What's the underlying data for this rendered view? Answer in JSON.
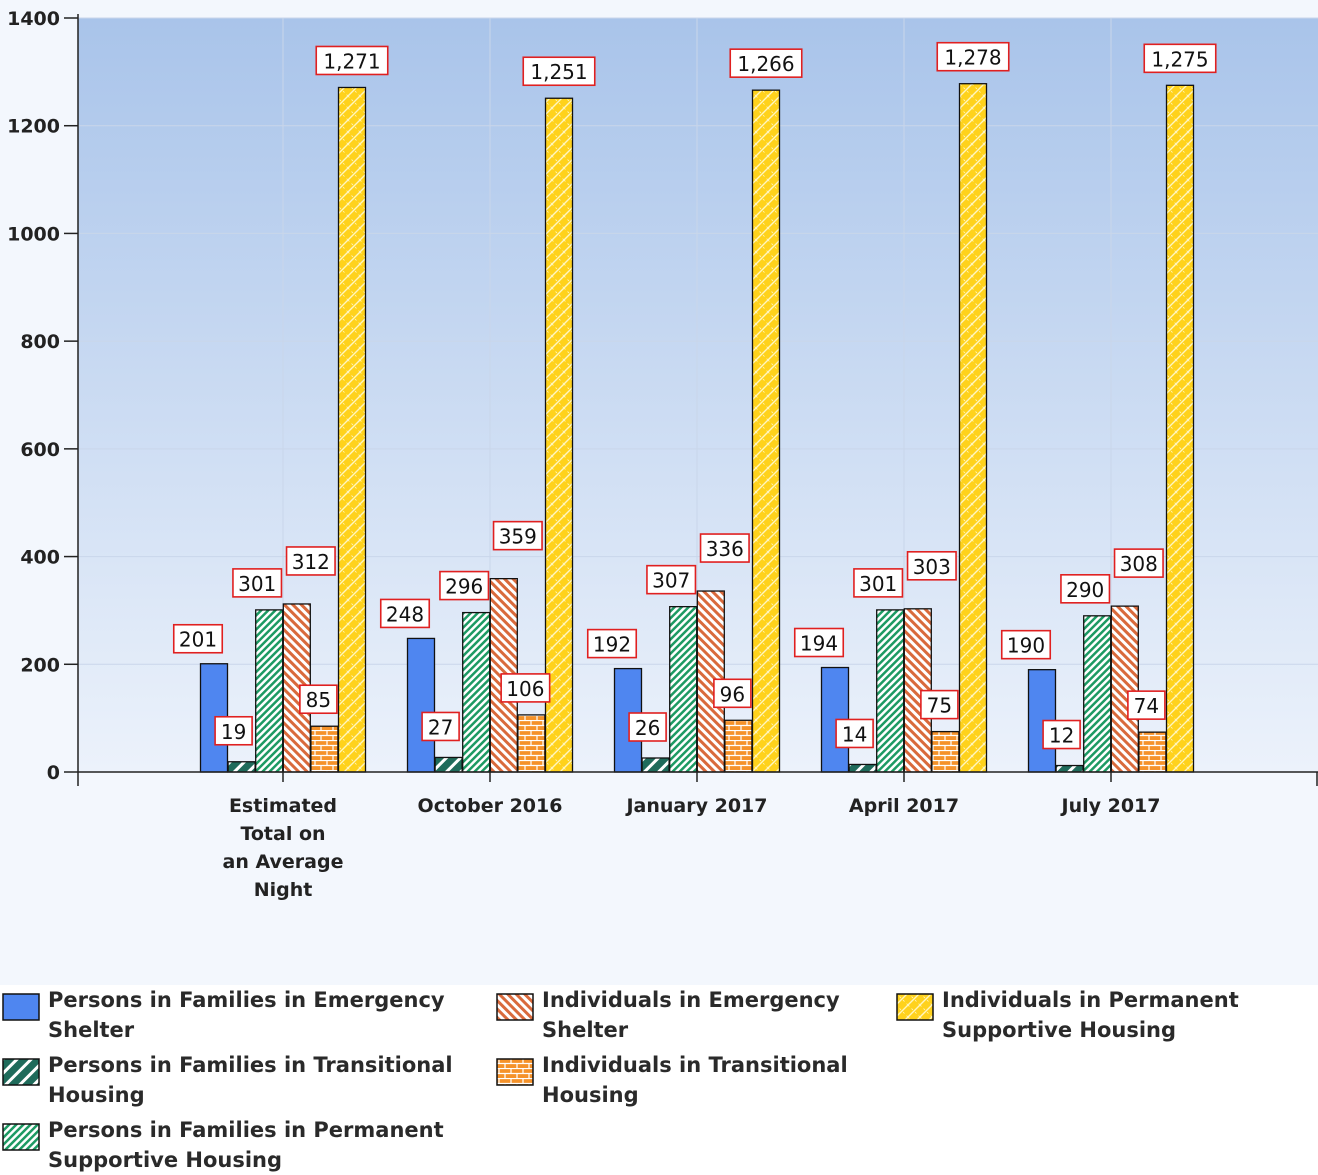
{
  "chart_data": {
    "type": "bar",
    "categories": [
      "Estimated Total on an Average Night",
      "October 2016",
      "January 2017",
      "April 2017",
      "July 2017"
    ],
    "category_label_lines": [
      [
        "Estimated",
        "Total on",
        "an Average",
        "Night"
      ],
      [
        "October 2016"
      ],
      [
        "January 2017"
      ],
      [
        "April 2017"
      ],
      [
        "July 2017"
      ]
    ],
    "series": [
      {
        "name": "Persons in Families in Emergency Shelter",
        "values": [
          201,
          248,
          192,
          194,
          190
        ],
        "labels": [
          "201",
          "248",
          "192",
          "194",
          "190"
        ],
        "color": "#4f86f0",
        "pattern": "solid"
      },
      {
        "name": "Persons in Families in Transitional Housing",
        "values": [
          19,
          27,
          26,
          14,
          12
        ],
        "labels": [
          "19",
          "27",
          "26",
          "14",
          "12"
        ],
        "color": "#1f6b5b",
        "pattern": "wide-diagonal"
      },
      {
        "name": "Persons in Families in Permanent Supportive Housing",
        "values": [
          301,
          296,
          307,
          301,
          290
        ],
        "labels": [
          "301",
          "296",
          "307",
          "301",
          "290"
        ],
        "color": "#1d9a63",
        "pattern": "dense-diagonal"
      },
      {
        "name": "Individuals in Emergency Shelter",
        "values": [
          312,
          359,
          336,
          303,
          308
        ],
        "labels": [
          "312",
          "359",
          "336",
          "303",
          "308"
        ],
        "color": "#d96a3c",
        "pattern": "diagonal"
      },
      {
        "name": "Individuals in Transitional Housing",
        "values": [
          85,
          106,
          96,
          75,
          74
        ],
        "labels": [
          "85",
          "106",
          "96",
          "75",
          "74"
        ],
        "color": "#f5922a",
        "pattern": "brick"
      },
      {
        "name": "Individuals in Permanent Supportive Housing",
        "values": [
          1271,
          1251,
          1266,
          1278,
          1275
        ],
        "labels": [
          "1,271",
          "1,251",
          "1,266",
          "1,278",
          "1,275"
        ],
        "color": "#ffd21c",
        "pattern": "crosshatch"
      }
    ],
    "ylim": [
      0,
      1400
    ],
    "yticks": [
      0,
      200,
      400,
      600,
      800,
      1000,
      1200,
      1400
    ],
    "ytick_labels": [
      "0",
      "200",
      "400",
      "600",
      "800",
      "1000",
      "1200",
      "1400"
    ],
    "title": "",
    "xlabel": "",
    "ylabel": "",
    "grid": true,
    "legend_position": "bottom",
    "colors": {
      "plot_top": "#a9c4ea",
      "plot_bottom": "#ecf2fb",
      "label_border": "#e02020",
      "grid": "#c9d6ea"
    }
  }
}
